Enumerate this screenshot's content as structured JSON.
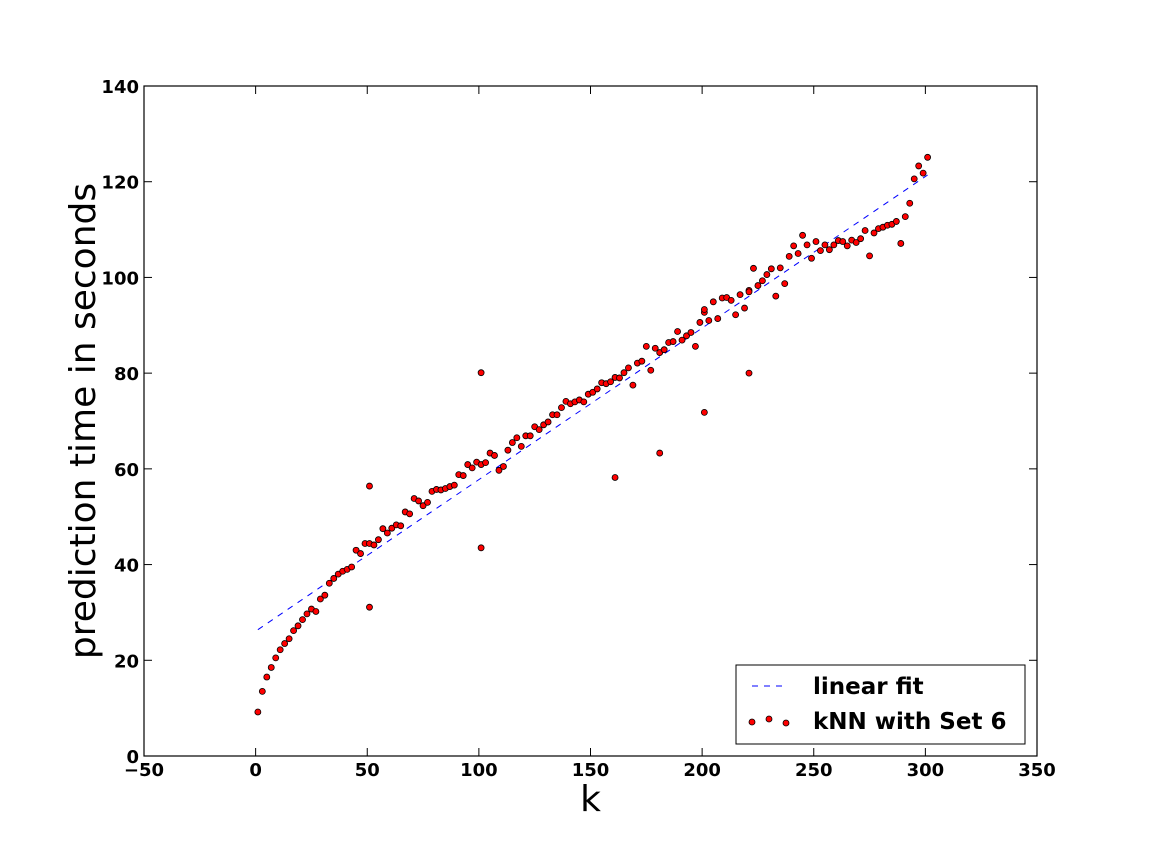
{
  "chart_data": {
    "type": "scatter",
    "xlabel": "k",
    "ylabel": "prediction time in seconds",
    "xlim": [
      -50,
      350
    ],
    "ylim": [
      0,
      140
    ],
    "x_ticks": [
      -50,
      0,
      50,
      100,
      150,
      200,
      250,
      300,
      350
    ],
    "y_ticks": [
      0,
      20,
      40,
      60,
      80,
      100,
      120,
      140
    ],
    "x_tick_labels": [
      "−50",
      "0",
      "50",
      "100",
      "150",
      "200",
      "250",
      "300",
      "350"
    ],
    "y_tick_labels": [
      "0",
      "20",
      "40",
      "60",
      "80",
      "100",
      "120",
      "140"
    ],
    "grid": false,
    "legend_position": "lower-right",
    "series": [
      {
        "name": "linear fit",
        "kind": "line",
        "style": "dashed",
        "color": "#0000ff",
        "x": [
          1,
          301
        ],
        "y": [
          26.4,
          121.4
        ]
      },
      {
        "name": "kNN with Set 6",
        "kind": "scatter",
        "color": "#ff0000",
        "x": [
          1,
          3,
          5,
          7,
          9,
          11,
          13,
          15,
          17,
          19,
          21,
          23,
          25,
          27,
          29,
          31,
          33,
          35,
          37,
          39,
          41,
          43,
          45,
          47,
          49,
          51,
          53,
          55,
          57,
          59,
          61,
          63,
          65,
          67,
          69,
          71,
          73,
          75,
          77,
          79,
          81,
          83,
          85,
          87,
          89,
          91,
          93,
          95,
          97,
          99,
          101,
          103,
          105,
          107,
          109,
          111,
          113,
          115,
          117,
          119,
          121,
          123,
          125,
          127,
          129,
          131,
          133,
          135,
          137,
          139,
          141,
          143,
          145,
          147,
          149,
          151,
          153,
          155,
          157,
          159,
          161,
          163,
          165,
          167,
          169,
          171,
          173,
          175,
          177,
          179,
          181,
          183,
          185,
          187,
          189,
          191,
          193,
          195,
          197,
          199,
          201,
          203,
          205,
          207,
          209,
          211,
          213,
          215,
          217,
          219,
          221,
          223,
          225,
          227,
          229,
          231,
          233,
          235,
          237,
          239,
          241,
          243,
          245,
          247,
          249,
          251,
          253,
          255,
          257,
          259,
          261,
          263,
          265,
          267,
          269,
          271,
          273,
          275,
          277,
          279,
          281,
          283,
          285,
          287,
          289,
          291,
          293,
          295,
          297,
          299,
          301,
          51,
          51,
          101,
          101,
          161,
          181,
          201,
          221,
          201,
          221
        ],
        "y": [
          9.2,
          13.5,
          16.5,
          18.5,
          20.5,
          22.2,
          23.5,
          24.5,
          26.2,
          27.2,
          28.5,
          29.7,
          30.7,
          30.2,
          32.8,
          33.6,
          36.1,
          37.1,
          38.0,
          38.6,
          39.0,
          39.5,
          43.0,
          42.3,
          44.4,
          44.4,
          44.1,
          45.2,
          47.5,
          46.6,
          47.6,
          48.3,
          48.1,
          51.0,
          50.6,
          53.8,
          53.3,
          52.3,
          53.0,
          55.3,
          55.7,
          55.6,
          55.9,
          56.3,
          56.6,
          58.8,
          58.6,
          60.9,
          60.2,
          61.4,
          60.9,
          61.3,
          63.3,
          62.8,
          59.7,
          60.5,
          63.9,
          65.5,
          66.5,
          64.7,
          66.9,
          66.9,
          68.8,
          68.2,
          69.2,
          69.8,
          71.3,
          71.3,
          72.8,
          74.1,
          73.6,
          74.0,
          74.4,
          74.0,
          75.6,
          76.0,
          76.7,
          78.0,
          77.8,
          78.2,
          79.1,
          79.0,
          80.1,
          81.1,
          77.5,
          82.1,
          82.5,
          85.6,
          80.6,
          85.2,
          84.3,
          84.9,
          86.4,
          86.6,
          88.7,
          86.9,
          87.8,
          88.5,
          85.6,
          90.6,
          92.7,
          91.0,
          94.9,
          91.4,
          95.7,
          95.8,
          95.2,
          92.2,
          96.4,
          93.6,
          97.3,
          101.9,
          98.3,
          99.3,
          100.6,
          101.8,
          96.1,
          102.0,
          98.7,
          104.4,
          106.6,
          105.0,
          108.8,
          106.8,
          104.0,
          107.5,
          105.6,
          106.8,
          105.8,
          106.8,
          107.7,
          107.5,
          106.6,
          107.8,
          107.3,
          108.1,
          109.8,
          104.5,
          109.3,
          110.2,
          110.5,
          110.9,
          111.1,
          111.7,
          107.1,
          112.7,
          115.5,
          120.6,
          123.3,
          121.8,
          125.1,
          56.4,
          31.1,
          80.1,
          43.5,
          58.2,
          63.3,
          71.8,
          80.0,
          93.3,
          97.0
        ]
      }
    ]
  }
}
